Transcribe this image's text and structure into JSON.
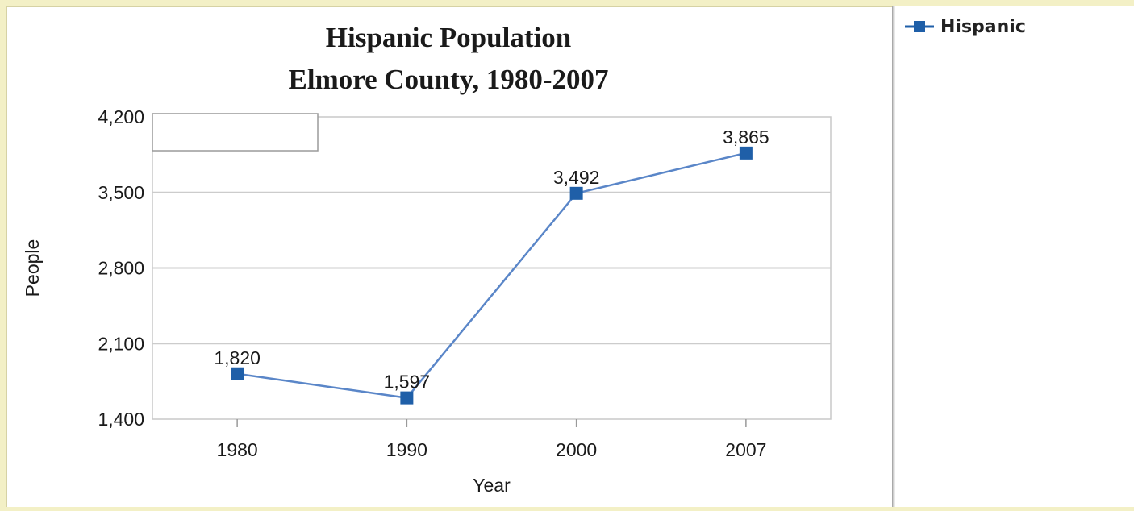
{
  "chart_data": {
    "type": "line",
    "title": "Hispanic Population",
    "subtitle": "Elmore County, 1980-2007",
    "xlabel": "Year",
    "ylabel": "People",
    "categories": [
      "1980",
      "1990",
      "2000",
      "2007"
    ],
    "series": [
      {
        "name": "Hispanic",
        "values": [
          1820,
          1597,
          3492,
          3865
        ],
        "color": "#1f5fa8"
      }
    ],
    "data_labels": [
      "1,820",
      "1,597",
      "3,492",
      "3,865"
    ],
    "ylim": [
      1400,
      4200
    ],
    "yticks": [
      1400,
      2100,
      2800,
      3500,
      4200
    ],
    "ytick_labels": [
      "1,400",
      "2,100",
      "2,800",
      "3,500",
      "4,200"
    ],
    "grid": true,
    "legend_position": "right-panel-top"
  },
  "legend": {
    "label": "Hispanic"
  },
  "colors": {
    "series": "#1f5fa8",
    "grid": "#cccccc",
    "line": "#5a86c8"
  }
}
